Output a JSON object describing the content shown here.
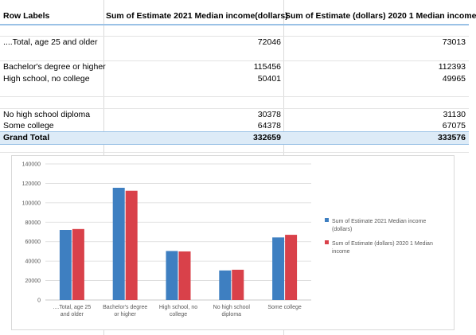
{
  "pivot": {
    "headers": {
      "row_labels": "Row Labels",
      "col1": "Sum of Estimate 2021 Median income(dollars)",
      "col2": "Sum of Estimate (dollars) 2020 1 Median income"
    },
    "rows": [
      {
        "label": "....Total, age 25 and older",
        "v1": "72046",
        "v2": "73013"
      },
      {
        "label": "Bachelor's degree or higher",
        "v1": "115456",
        "v2": "112393"
      },
      {
        "label": "High school, no college",
        "v1": "50401",
        "v2": "49965"
      },
      {
        "label": "No high school diploma",
        "v1": "30378",
        "v2": "31130"
      },
      {
        "label": "Some college",
        "v1": "64378",
        "v2": "67075"
      }
    ],
    "grand_total": {
      "label": "Grand Total",
      "v1": "332659",
      "v2": "333576"
    }
  },
  "chart_data": {
    "type": "bar",
    "categories": [
      [
        "....Total, age 25",
        "and older"
      ],
      [
        "Bachelor's degree",
        "or higher"
      ],
      [
        "High school, no",
        "college"
      ],
      [
        "No high school",
        "diploma"
      ],
      [
        "Some college"
      ]
    ],
    "series": [
      {
        "name": [
          "Sum of Estimate 2021 Median income",
          "(dollars)"
        ],
        "color": "#3e7fc1",
        "values": [
          72046,
          115456,
          50401,
          30378,
          64378
        ]
      },
      {
        "name": [
          "Sum of Estimate (dollars) 2020 1 Median",
          "income"
        ],
        "color": "#d9414a",
        "values": [
          73013,
          112393,
          49965,
          31130,
          67075
        ]
      }
    ],
    "ylim": [
      0,
      140000
    ],
    "yticks": [
      "0",
      "20000",
      "40000",
      "60000",
      "80000",
      "100000",
      "120000",
      "140000"
    ],
    "grid": true,
    "legend": "right"
  }
}
